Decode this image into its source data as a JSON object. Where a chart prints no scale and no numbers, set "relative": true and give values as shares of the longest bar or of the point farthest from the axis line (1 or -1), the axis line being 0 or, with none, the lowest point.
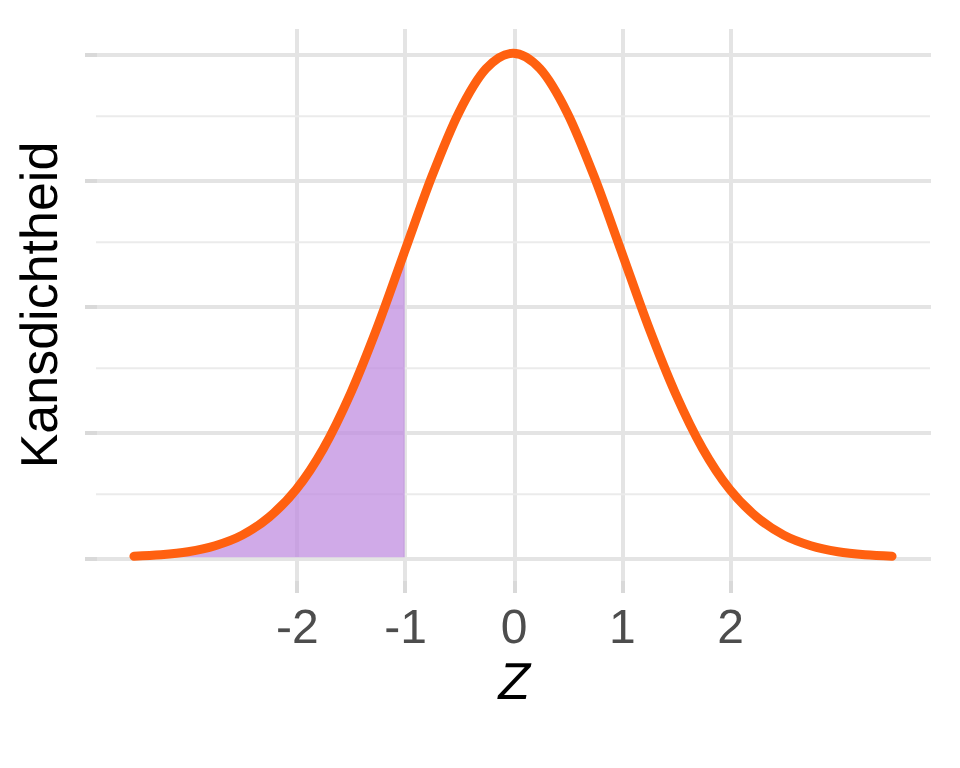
{
  "chart_data": {
    "type": "line",
    "xlabel": "Z",
    "ylabel": "Kansdichtheid",
    "relative": true,
    "grid": true,
    "xlim": [
      -3.85,
      3.85
    ],
    "xticks": [
      -2,
      -1,
      0,
      1,
      2
    ],
    "series": [
      {
        "type": "area",
        "color": "#c08ee0",
        "x": [
          -3.5,
          -3.25,
          -3,
          -2.75,
          -2.5,
          -2.25,
          -2,
          -1.75,
          -1.5,
          -1.25,
          -1
        ],
        "values": [
          0.0022,
          0.005,
          0.011,
          0.023,
          0.044,
          0.08,
          0.135,
          0.216,
          0.325,
          0.458,
          0.607
        ]
      },
      {
        "color": "#ff6010",
        "x": [
          -3.5,
          -3.25,
          -3,
          -2.75,
          -2.5,
          -2.25,
          -2,
          -1.75,
          -1.5,
          -1.25,
          -1,
          -0.75,
          -0.5,
          -0.25,
          0,
          0.25,
          0.5,
          0.75,
          1,
          1.25,
          1.5,
          1.75,
          2,
          2.25,
          2.5,
          2.75,
          3,
          3.25,
          3.5
        ],
        "values": [
          0.0022,
          0.005,
          0.011,
          0.023,
          0.044,
          0.08,
          0.135,
          0.216,
          0.325,
          0.458,
          0.607,
          0.755,
          0.882,
          0.969,
          1,
          0.969,
          0.882,
          0.755,
          0.607,
          0.458,
          0.325,
          0.216,
          0.135,
          0.08,
          0.044,
          0.023,
          0.011,
          0.005,
          0.0022
        ]
      }
    ]
  }
}
